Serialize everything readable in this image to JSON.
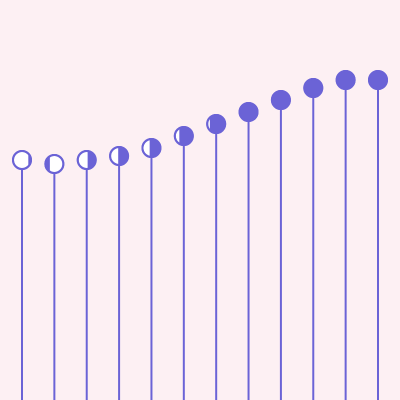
{
  "theme": {
    "background": "#fdf0f3",
    "accent": "#6b63d6"
  },
  "pins": [
    {
      "level": 0.6,
      "fill": 0.15,
      "dark_side": "right"
    },
    {
      "level": 0.59,
      "fill": 0.25,
      "dark_side": "left"
    },
    {
      "level": 0.6,
      "fill": 0.45,
      "dark_side": "right"
    },
    {
      "level": 0.61,
      "fill": 0.55,
      "dark_side": "right"
    },
    {
      "level": 0.63,
      "fill": 0.6,
      "dark_side": "right"
    },
    {
      "level": 0.66,
      "fill": 0.75,
      "dark_side": "right"
    },
    {
      "level": 0.69,
      "fill": 0.85,
      "dark_side": "right"
    },
    {
      "level": 0.72,
      "fill": 0.95,
      "dark_side": "right"
    },
    {
      "level": 0.75,
      "fill": 1.0,
      "dark_side": "right"
    },
    {
      "level": 0.78,
      "fill": 1.0,
      "dark_side": "right"
    },
    {
      "level": 0.8,
      "fill": 1.0,
      "dark_side": "right"
    },
    {
      "level": 0.8,
      "fill": 1.0,
      "dark_side": "right"
    }
  ]
}
